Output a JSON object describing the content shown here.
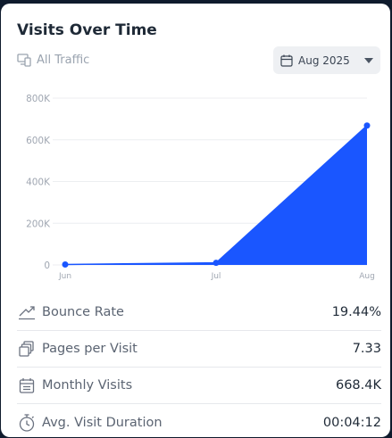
{
  "card": {
    "title": "Visits Over Time",
    "filter_label": "All Traffic",
    "date_select_value": "Aug 2025"
  },
  "chart_data": {
    "type": "area",
    "categories": [
      "Jun",
      "Jul",
      "Aug"
    ],
    "values": [
      2000,
      10000,
      668400
    ],
    "ylim": [
      0,
      800000
    ],
    "yticks": [
      "0",
      "200K",
      "400K",
      "600K",
      "800K"
    ],
    "grid": true,
    "title": "",
    "xlabel": "",
    "ylabel": "",
    "fill_color": "#1a56ff",
    "line_color": "#1a56ff"
  },
  "metrics": [
    {
      "icon": "trend-down-icon",
      "label": "Bounce Rate",
      "value": "19.44%"
    },
    {
      "icon": "pages-icon",
      "label": "Pages per Visit",
      "value": "7.33"
    },
    {
      "icon": "calendar-icon",
      "label": "Monthly Visits",
      "value": "668.4K"
    },
    {
      "icon": "stopwatch-icon",
      "label": "Avg. Visit Duration",
      "value": "00:04:12"
    }
  ]
}
